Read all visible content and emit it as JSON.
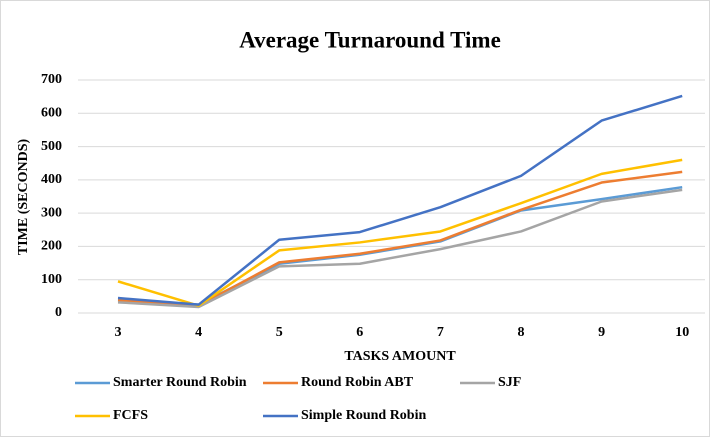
{
  "chart_data": {
    "type": "line",
    "title": "Average Turnaround Time",
    "xlabel": "TASKS AMOUNT",
    "ylabel": "TIME (SECONDS)",
    "categories": [
      "3",
      "4",
      "5",
      "6",
      "7",
      "8",
      "9",
      "10"
    ],
    "series": [
      {
        "name": "Smarter Round Robin",
        "color": "#5b9bd5",
        "values": [
          40,
          25,
          148,
          175,
          215,
          308,
          342,
          378
        ]
      },
      {
        "name": "Round Robin ABT",
        "color": "#ed7d31",
        "values": [
          38,
          22,
          152,
          178,
          218,
          310,
          392,
          424
        ]
      },
      {
        "name": "SJF",
        "color": "#a5a5a5",
        "values": [
          32,
          18,
          140,
          148,
          192,
          245,
          335,
          370
        ]
      },
      {
        "name": "FCFS",
        "color": "#ffc000",
        "values": [
          95,
          22,
          188,
          212,
          245,
          330,
          418,
          460
        ]
      },
      {
        "name": "Simple Round Robin",
        "color": "#4472c4",
        "values": [
          45,
          25,
          220,
          243,
          318,
          412,
          578,
          652
        ]
      }
    ],
    "ylim": [
      0,
      700
    ],
    "yticks": [
      0,
      100,
      200,
      300,
      400,
      500,
      600,
      700
    ],
    "grid": true
  }
}
